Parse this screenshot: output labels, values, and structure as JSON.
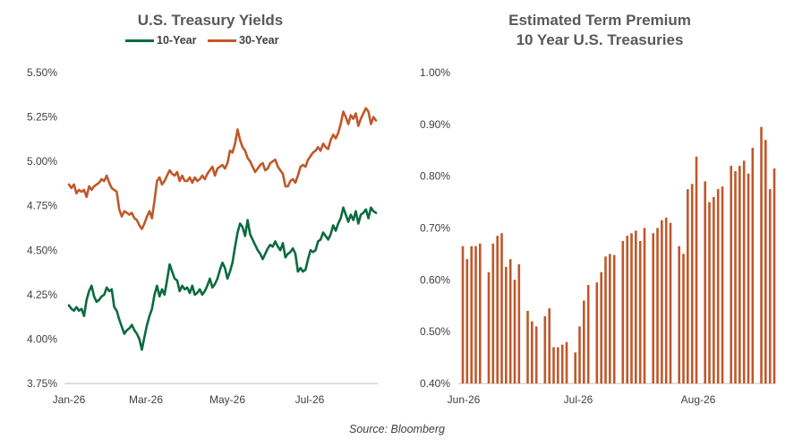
{
  "colors": {
    "ten_year": "#0b6b3e",
    "thirty_year": "#c0582a",
    "bar": "#c0582a",
    "axis": "#bfbfbf",
    "text": "#404040",
    "title": "#595959"
  },
  "source": "Source: Bloomberg",
  "chart_data": [
    {
      "type": "line",
      "title": "U.S. Treasury Yields",
      "xlabel": "",
      "ylabel": "",
      "x_ticks": [
        "Jan-26",
        "Mar-26",
        "May-26",
        "Jul-26"
      ],
      "y_ticks": [
        "3.75%",
        "4.00%",
        "4.25%",
        "4.50%",
        "4.75%",
        "5.00%",
        "5.25%",
        "5.50%"
      ],
      "ylim": [
        3.75,
        5.5
      ],
      "legend": "top",
      "series": [
        {
          "name": "10-Year",
          "color": "#0b6b3e",
          "values": [
            4.19,
            4.17,
            4.16,
            4.18,
            4.16,
            4.17,
            4.13,
            4.22,
            4.27,
            4.3,
            4.24,
            4.21,
            4.22,
            4.24,
            4.25,
            4.29,
            4.27,
            4.28,
            4.18,
            4.16,
            4.11,
            4.07,
            4.03,
            4.05,
            4.06,
            4.08,
            4.05,
            4.03,
            4.0,
            3.94,
            4.01,
            4.08,
            4.13,
            4.17,
            4.25,
            4.3,
            4.24,
            4.28,
            4.25,
            4.33,
            4.42,
            4.38,
            4.34,
            4.33,
            4.27,
            4.3,
            4.28,
            4.29,
            4.26,
            4.3,
            4.25,
            4.26,
            4.28,
            4.25,
            4.27,
            4.3,
            4.34,
            4.29,
            4.31,
            4.34,
            4.39,
            4.43,
            4.4,
            4.34,
            4.38,
            4.43,
            4.52,
            4.6,
            4.65,
            4.63,
            4.58,
            4.67,
            4.59,
            4.56,
            4.53,
            4.5,
            4.48,
            4.45,
            4.48,
            4.51,
            4.53,
            4.52,
            4.55,
            4.52,
            4.5,
            4.54,
            4.46,
            4.48,
            4.49,
            4.51,
            4.48,
            4.38,
            4.4,
            4.38,
            4.39,
            4.45,
            4.5,
            4.49,
            4.5,
            4.55,
            4.56,
            4.6,
            4.58,
            4.56,
            4.59,
            4.64,
            4.61,
            4.65,
            4.68,
            4.74,
            4.7,
            4.66,
            4.7,
            4.67,
            4.72,
            4.65,
            4.7,
            4.71,
            4.73,
            4.68,
            4.74,
            4.72,
            4.71
          ]
        },
        {
          "name": "30-Year",
          "color": "#c0582a",
          "values": [
            4.87,
            4.85,
            4.87,
            4.82,
            4.84,
            4.83,
            4.84,
            4.8,
            4.86,
            4.84,
            4.86,
            4.87,
            4.88,
            4.9,
            4.89,
            4.92,
            4.88,
            4.85,
            4.84,
            4.83,
            4.73,
            4.69,
            4.72,
            4.71,
            4.7,
            4.71,
            4.68,
            4.67,
            4.64,
            4.62,
            4.65,
            4.69,
            4.72,
            4.68,
            4.78,
            4.89,
            4.91,
            4.87,
            4.89,
            4.92,
            4.95,
            4.93,
            4.92,
            4.94,
            4.89,
            4.92,
            4.89,
            4.89,
            4.91,
            4.88,
            4.91,
            4.89,
            4.9,
            4.92,
            4.9,
            4.93,
            4.95,
            4.97,
            4.92,
            4.96,
            4.97,
            4.98,
            4.96,
            4.99,
            5.06,
            5.05,
            5.1,
            5.18,
            5.12,
            5.08,
            5.06,
            5.02,
            5.0,
            4.97,
            4.94,
            4.96,
            4.98,
            4.99,
            4.95,
            4.96,
            4.99,
            5.0,
            5.01,
            4.97,
            4.95,
            4.93,
            4.86,
            4.86,
            4.89,
            4.9,
            4.88,
            4.92,
            4.97,
            4.98,
            4.97,
            5.01,
            5.03,
            5.05,
            5.06,
            5.08,
            5.06,
            5.1,
            5.08,
            5.07,
            5.12,
            5.15,
            5.13,
            5.16,
            5.21,
            5.28,
            5.25,
            5.21,
            5.26,
            5.24,
            5.27,
            5.2,
            5.24,
            5.27,
            5.3,
            5.28,
            5.21,
            5.25,
            5.23
          ]
        }
      ]
    },
    {
      "type": "bar",
      "title": "Estimated Term Premium\n10 Year U.S. Treasuries",
      "title_lines": [
        "Estimated Term Premium",
        "10 Year U.S. Treasuries"
      ],
      "xlabel": "",
      "ylabel": "",
      "x_ticks": [
        "Jun-26",
        "Jul-26",
        "Aug-26"
      ],
      "y_ticks": [
        "0.40%",
        "0.50%",
        "0.60%",
        "0.70%",
        "0.80%",
        "0.90%",
        "1.00%"
      ],
      "ylim": [
        0.4,
        1.0
      ],
      "series": [
        {
          "name": "",
          "color": "#c0582a",
          "values": [
            0.665,
            0.64,
            0.665,
            0.665,
            0.67,
            null,
            0.615,
            0.67,
            0.685,
            0.69,
            0.625,
            0.64,
            0.6,
            0.63,
            null,
            0.54,
            0.52,
            0.51,
            null,
            0.53,
            0.545,
            0.47,
            0.47,
            0.475,
            0.48,
            null,
            0.46,
            0.51,
            0.56,
            0.59,
            null,
            0.595,
            0.615,
            0.645,
            0.65,
            0.648,
            null,
            0.675,
            0.685,
            0.69,
            0.695,
            0.675,
            0.7,
            null,
            0.69,
            0.7,
            0.715,
            0.72,
            0.71,
            null,
            0.665,
            0.65,
            0.775,
            0.785,
            0.838,
            null,
            0.79,
            0.75,
            0.76,
            0.775,
            0.78,
            null,
            0.82,
            0.81,
            0.82,
            0.83,
            0.805,
            0.855,
            null,
            0.895,
            0.87,
            0.775,
            0.815
          ]
        }
      ]
    }
  ]
}
